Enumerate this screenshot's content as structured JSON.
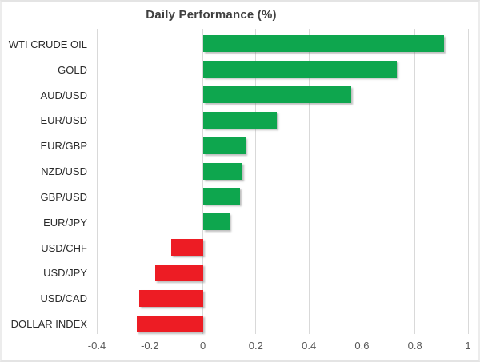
{
  "chart_data": {
    "type": "bar",
    "orientation": "horizontal",
    "title": "Daily Performance (%)",
    "categories": [
      "WTI CRUDE OIL",
      "GOLD",
      "AUD/USD",
      "EUR/USD",
      "EUR/GBP",
      "NZD/USD",
      "GBP/USD",
      "EUR/JPY",
      "USD/CHF",
      "USD/JPY",
      "USD/CAD",
      "DOLLAR INDEX"
    ],
    "values": [
      0.91,
      0.73,
      0.56,
      0.28,
      0.16,
      0.15,
      0.14,
      0.1,
      -0.12,
      -0.18,
      -0.24,
      -0.25
    ],
    "xlabel": "",
    "ylabel": "",
    "xlim": [
      -0.4,
      1.0
    ],
    "xticks": [
      -0.4,
      -0.2,
      0,
      0.2,
      0.4,
      0.6,
      0.8,
      1
    ],
    "xtick_labels": [
      "-0.4",
      "-0.2",
      "0",
      "0.2",
      "0.4",
      "0.6",
      "0.8",
      "1"
    ],
    "grid": true,
    "legend": false,
    "colors": {
      "positive": "#0ea64e",
      "negative": "#ed1c24",
      "gridline": "#d9d9d9",
      "title_text": "#3f3f3f",
      "category_text": "#2b2b2b",
      "tick_text": "#595959"
    }
  }
}
